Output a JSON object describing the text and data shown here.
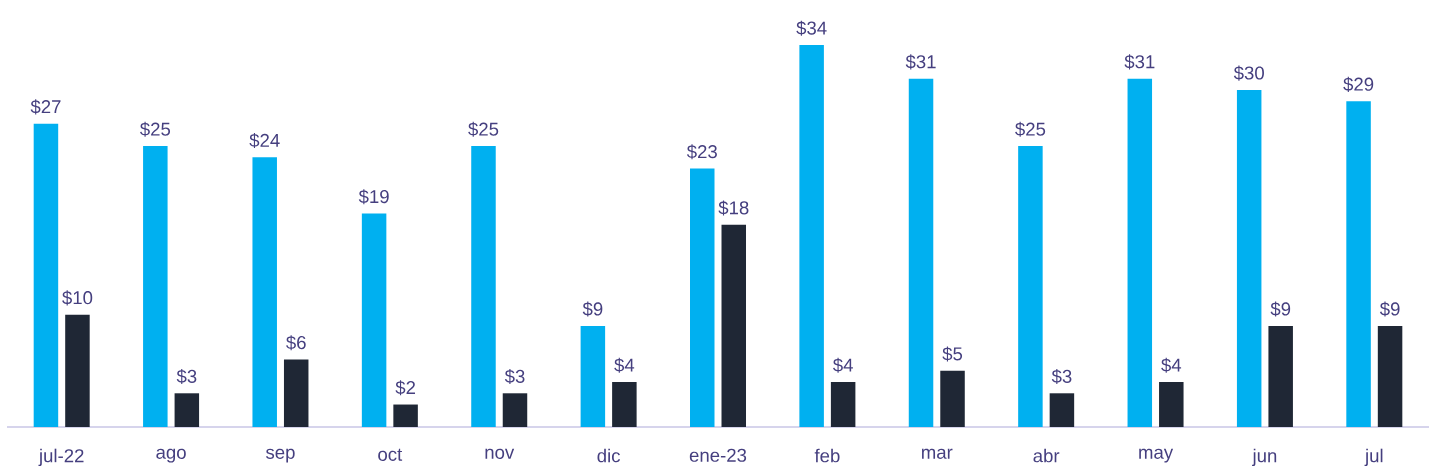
{
  "chart_data": {
    "type": "bar",
    "categories": [
      "jul-22",
      "ago",
      "sep",
      "oct",
      "nov",
      "dic",
      "ene-23",
      "feb",
      "mar",
      "abr",
      "may",
      "jun",
      "jul"
    ],
    "series": [
      {
        "color": "#00b0f0",
        "values": [
          27,
          25,
          24,
          19,
          25,
          9,
          23,
          34,
          31,
          25,
          31,
          30,
          29
        ],
        "value_labels": [
          "$27",
          "$25",
          "$24",
          "$19",
          "$25",
          "$9",
          "$23",
          "$34",
          "$31",
          "$25",
          "$31",
          "$30",
          "$29"
        ]
      },
      {
        "color": "#1f2735",
        "values": [
          10,
          3,
          6,
          2,
          3,
          4,
          18,
          4,
          5,
          3,
          4,
          9,
          9
        ],
        "value_labels": [
          "$10",
          "$3",
          "$6",
          "$2",
          "$3",
          "$4",
          "$18",
          "$4",
          "$5",
          "$3",
          "$4",
          "$9",
          "$9"
        ]
      }
    ]
  }
}
